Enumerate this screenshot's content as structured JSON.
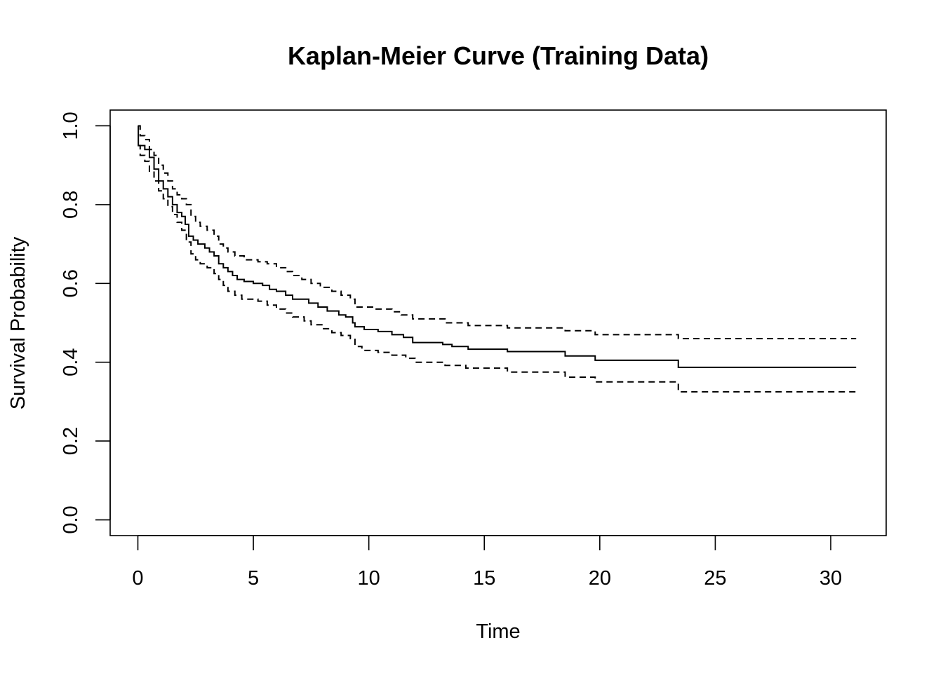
{
  "chart_data": {
    "type": "line",
    "title": "Kaplan-Meier Curve (Training Data)",
    "xlabel": "Time",
    "ylabel": "Survival Probability",
    "xlim": [
      -1.2,
      32.4
    ],
    "ylim": [
      -0.04,
      1.04
    ],
    "x_ticks": [
      "0",
      "5",
      "10",
      "15",
      "20",
      "25",
      "30"
    ],
    "y_ticks": [
      "0.0",
      "0.2",
      "0.4",
      "0.6",
      "0.8",
      "1.0"
    ],
    "grid": false,
    "step": true,
    "series": [
      {
        "style": "solid",
        "points": [
          [
            0,
            1.0
          ],
          [
            0.02,
            0.95
          ],
          [
            0.3,
            0.94
          ],
          [
            0.5,
            0.92
          ],
          [
            0.7,
            0.89
          ],
          [
            0.9,
            0.86
          ],
          [
            1.1,
            0.84
          ],
          [
            1.3,
            0.82
          ],
          [
            1.5,
            0.8
          ],
          [
            1.7,
            0.78
          ],
          [
            1.9,
            0.77
          ],
          [
            2.05,
            0.75
          ],
          [
            2.2,
            0.72
          ],
          [
            2.4,
            0.71
          ],
          [
            2.6,
            0.7
          ],
          [
            2.9,
            0.69
          ],
          [
            3.1,
            0.68
          ],
          [
            3.3,
            0.67
          ],
          [
            3.5,
            0.65
          ],
          [
            3.7,
            0.64
          ],
          [
            3.9,
            0.63
          ],
          [
            4.1,
            0.62
          ],
          [
            4.3,
            0.61
          ],
          [
            4.6,
            0.605
          ],
          [
            5.0,
            0.6
          ],
          [
            5.4,
            0.595
          ],
          [
            5.7,
            0.585
          ],
          [
            6.0,
            0.58
          ],
          [
            6.4,
            0.57
          ],
          [
            6.7,
            0.56
          ],
          [
            7.4,
            0.55
          ],
          [
            7.8,
            0.54
          ],
          [
            8.2,
            0.53
          ],
          [
            8.7,
            0.52
          ],
          [
            9.0,
            0.515
          ],
          [
            9.3,
            0.5
          ],
          [
            9.4,
            0.49
          ],
          [
            9.8,
            0.483
          ],
          [
            10.4,
            0.478
          ],
          [
            11.0,
            0.47
          ],
          [
            11.5,
            0.463
          ],
          [
            11.9,
            0.45
          ],
          [
            13.2,
            0.445
          ],
          [
            13.6,
            0.44
          ],
          [
            14.3,
            0.433
          ],
          [
            16.0,
            0.427
          ],
          [
            18.5,
            0.416
          ],
          [
            19.8,
            0.405
          ],
          [
            23.4,
            0.387
          ],
          [
            31.1,
            0.387
          ]
        ]
      },
      {
        "style": "dashed",
        "points": [
          [
            0,
            1.0
          ],
          [
            0.1,
            0.975
          ],
          [
            0.3,
            0.965
          ],
          [
            0.5,
            0.94
          ],
          [
            0.7,
            0.925
          ],
          [
            0.9,
            0.9
          ],
          [
            1.1,
            0.88
          ],
          [
            1.3,
            0.86
          ],
          [
            1.5,
            0.84
          ],
          [
            1.7,
            0.825
          ],
          [
            1.9,
            0.815
          ],
          [
            2.1,
            0.8
          ],
          [
            2.3,
            0.77
          ],
          [
            2.5,
            0.755
          ],
          [
            2.7,
            0.745
          ],
          [
            3.0,
            0.735
          ],
          [
            3.3,
            0.72
          ],
          [
            3.5,
            0.7
          ],
          [
            3.7,
            0.69
          ],
          [
            3.9,
            0.68
          ],
          [
            4.2,
            0.67
          ],
          [
            4.6,
            0.66
          ],
          [
            5.2,
            0.655
          ],
          [
            5.6,
            0.65
          ],
          [
            6.0,
            0.64
          ],
          [
            6.4,
            0.63
          ],
          [
            6.7,
            0.62
          ],
          [
            7.1,
            0.61
          ],
          [
            7.5,
            0.6
          ],
          [
            7.9,
            0.59
          ],
          [
            8.4,
            0.58
          ],
          [
            8.8,
            0.57
          ],
          [
            9.2,
            0.56
          ],
          [
            9.4,
            0.54
          ],
          [
            10.2,
            0.535
          ],
          [
            11.0,
            0.528
          ],
          [
            11.4,
            0.52
          ],
          [
            11.9,
            0.51
          ],
          [
            13.3,
            0.5
          ],
          [
            14.3,
            0.493
          ],
          [
            16.0,
            0.487
          ],
          [
            18.5,
            0.48
          ],
          [
            19.8,
            0.47
          ],
          [
            23.4,
            0.46
          ],
          [
            31.1,
            0.46
          ]
        ]
      },
      {
        "style": "dashed",
        "points": [
          [
            0,
            0.95
          ],
          [
            0.1,
            0.925
          ],
          [
            0.3,
            0.91
          ],
          [
            0.5,
            0.885
          ],
          [
            0.7,
            0.86
          ],
          [
            0.9,
            0.835
          ],
          [
            1.1,
            0.815
          ],
          [
            1.3,
            0.795
          ],
          [
            1.5,
            0.775
          ],
          [
            1.7,
            0.755
          ],
          [
            1.9,
            0.735
          ],
          [
            2.1,
            0.705
          ],
          [
            2.3,
            0.675
          ],
          [
            2.5,
            0.66
          ],
          [
            2.7,
            0.65
          ],
          [
            3.0,
            0.64
          ],
          [
            3.3,
            0.625
          ],
          [
            3.5,
            0.61
          ],
          [
            3.7,
            0.595
          ],
          [
            3.9,
            0.58
          ],
          [
            4.2,
            0.57
          ],
          [
            4.5,
            0.56
          ],
          [
            5.2,
            0.555
          ],
          [
            5.6,
            0.545
          ],
          [
            6.0,
            0.535
          ],
          [
            6.4,
            0.525
          ],
          [
            6.7,
            0.515
          ],
          [
            7.2,
            0.505
          ],
          [
            7.5,
            0.495
          ],
          [
            8.0,
            0.485
          ],
          [
            8.4,
            0.475
          ],
          [
            8.8,
            0.468
          ],
          [
            9.2,
            0.46
          ],
          [
            9.4,
            0.44
          ],
          [
            9.7,
            0.43
          ],
          [
            10.4,
            0.425
          ],
          [
            11.0,
            0.418
          ],
          [
            11.6,
            0.41
          ],
          [
            12.0,
            0.4
          ],
          [
            13.3,
            0.392
          ],
          [
            14.2,
            0.385
          ],
          [
            16.0,
            0.375
          ],
          [
            18.5,
            0.362
          ],
          [
            19.8,
            0.35
          ],
          [
            23.4,
            0.325
          ],
          [
            31.1,
            0.325
          ]
        ]
      }
    ]
  }
}
